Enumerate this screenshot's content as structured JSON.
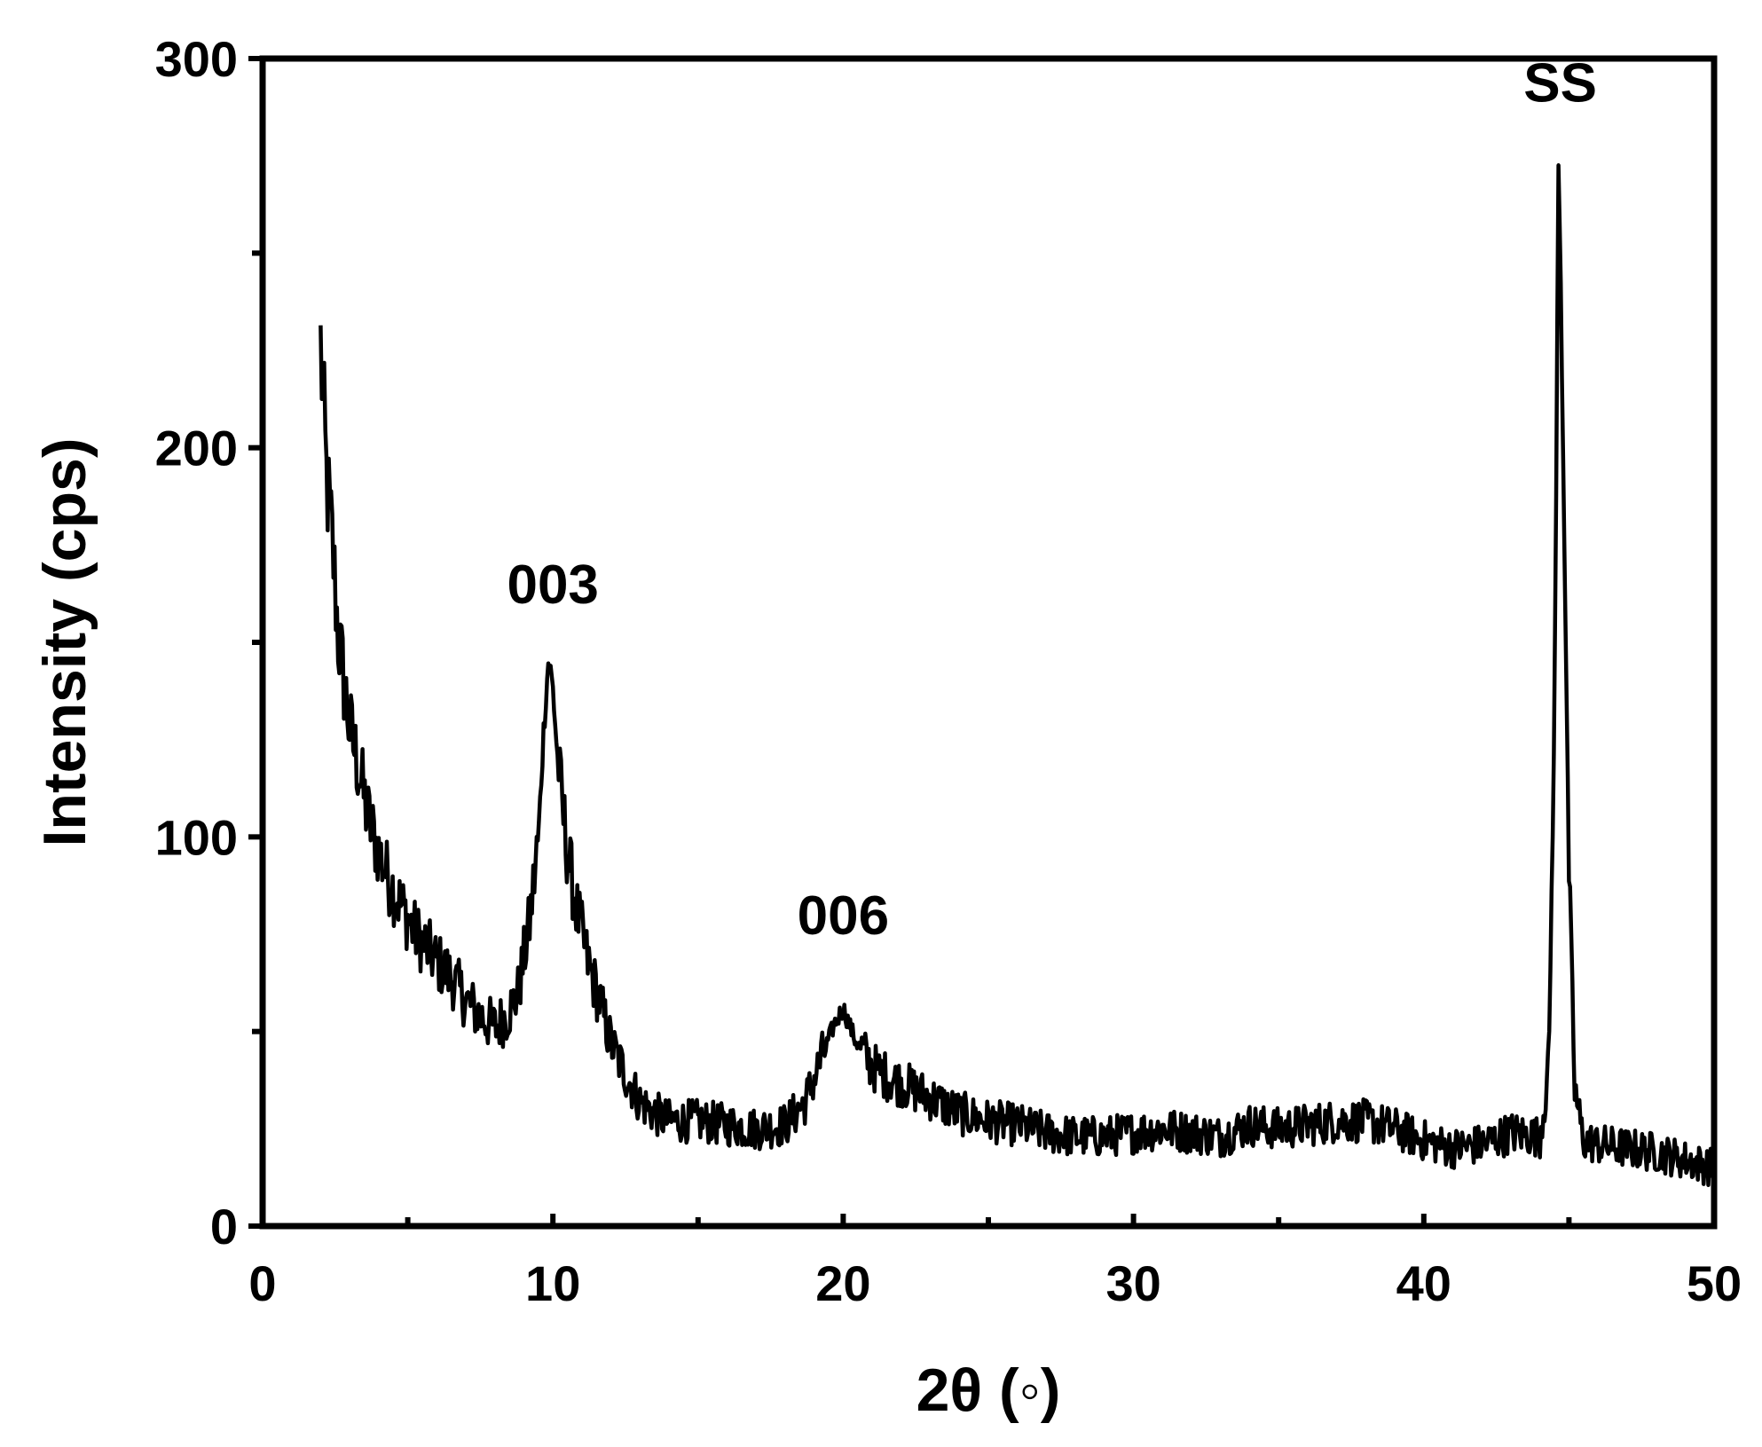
{
  "chart_data": {
    "type": "line",
    "title": "",
    "xlabel": "2θ (◦)",
    "ylabel": "Intensity (cps)",
    "xlim": [
      0,
      50
    ],
    "ylim": [
      0,
      300
    ],
    "x_ticks": [
      "0",
      "10",
      "20",
      "30",
      "40",
      "50"
    ],
    "y_ticks": [
      "0",
      "100",
      "200",
      "300"
    ],
    "grid": false,
    "legend": "none",
    "line_color": "#000000",
    "series": [
      {
        "x": [
          2.0,
          2.2,
          2.4,
          2.6,
          2.8,
          3.0,
          3.3,
          3.6,
          4.0,
          4.4,
          4.8,
          5.2,
          5.6,
          6.0,
          6.5,
          7.0,
          7.5,
          8.0,
          8.4,
          8.8,
          9.2,
          9.5,
          9.7,
          9.85,
          10.0,
          10.2,
          10.5,
          10.8,
          11.2,
          11.6,
          12.0,
          12.5,
          13.0,
          13.5,
          14.0,
          15.0,
          16.0,
          17.0,
          18.0,
          18.7,
          19.3,
          19.7,
          20.0,
          20.4,
          21.0,
          21.6,
          22.2,
          23.0,
          24.0,
          25.0,
          26.0,
          27.0,
          28.0,
          29.0,
          30.0,
          31.0,
          32.0,
          33.0,
          34.0,
          35.0,
          36.0,
          37.0,
          38.0,
          39.0,
          40.0,
          41.0,
          42.0,
          43.0,
          44.0,
          44.3,
          44.5,
          44.65,
          44.8,
          45.0,
          45.2,
          45.5,
          46.0,
          47.0,
          48.0,
          49.0,
          50.0
        ],
        "y": [
          226,
          192,
          176,
          152,
          140,
          128,
          118,
          106,
          96,
          88,
          82,
          76,
          72,
          68,
          64,
          58,
          54,
          51,
          54,
          60,
          78,
          100,
          130,
          146,
          138,
          116,
          96,
          82,
          68,
          58,
          47,
          39,
          32,
          29,
          27,
          27,
          26,
          25,
          26,
          32,
          44,
          52,
          56,
          48,
          41,
          38,
          36,
          33,
          29,
          27,
          26,
          24,
          23,
          23,
          24,
          25,
          24,
          23,
          26,
          25,
          26,
          27,
          27,
          25,
          22,
          20,
          21,
          24,
          23,
          40,
          130,
          280,
          200,
          90,
          35,
          22,
          21,
          20,
          19,
          17,
          15
        ]
      }
    ],
    "annotations": [
      {
        "text": "003",
        "x": 10.0,
        "y": 160
      },
      {
        "text": "006",
        "x": 20.0,
        "y": 75
      },
      {
        "text": "SS",
        "x": 44.7,
        "y": 289
      }
    ]
  }
}
